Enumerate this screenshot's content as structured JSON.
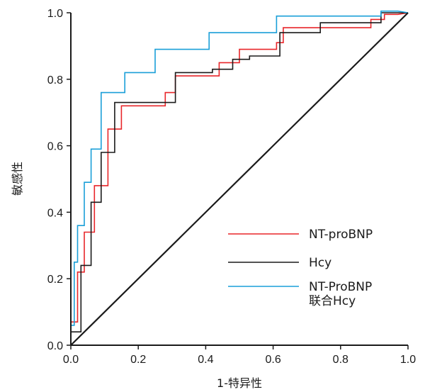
{
  "chart_data": {
    "type": "line",
    "title": "",
    "xlabel": "1-特异性",
    "ylabel": "敏感性",
    "xlim": [
      0,
      1
    ],
    "ylim": [
      0,
      1
    ],
    "x_ticks": [
      "0.0",
      "0.2",
      "0.4",
      "0.6",
      "0.8",
      "1.0"
    ],
    "y_ticks": [
      "0.0",
      "0.2",
      "0.4",
      "0.6",
      "0.8",
      "1.0"
    ],
    "grid": false,
    "legend_position": "bottom-right",
    "series": [
      {
        "name": "NT-proBNP",
        "color": "#e8262a",
        "points": [
          [
            0,
            0
          ],
          [
            0,
            0.07
          ],
          [
            0.02,
            0.07
          ],
          [
            0.02,
            0.22
          ],
          [
            0.04,
            0.22
          ],
          [
            0.04,
            0.34
          ],
          [
            0.07,
            0.34
          ],
          [
            0.07,
            0.48
          ],
          [
            0.11,
            0.48
          ],
          [
            0.11,
            0.65
          ],
          [
            0.15,
            0.65
          ],
          [
            0.15,
            0.72
          ],
          [
            0.28,
            0.72
          ],
          [
            0.28,
            0.76
          ],
          [
            0.31,
            0.76
          ],
          [
            0.31,
            0.81
          ],
          [
            0.44,
            0.81
          ],
          [
            0.44,
            0.85
          ],
          [
            0.5,
            0.85
          ],
          [
            0.5,
            0.89
          ],
          [
            0.61,
            0.89
          ],
          [
            0.61,
            0.91
          ],
          [
            0.63,
            0.91
          ],
          [
            0.63,
            0.955
          ],
          [
            0.89,
            0.955
          ],
          [
            0.89,
            0.98
          ],
          [
            0.93,
            0.98
          ],
          [
            0.93,
            0.995
          ],
          [
            0.97,
            0.995
          ],
          [
            1,
            1
          ]
        ]
      },
      {
        "name": "Hcy",
        "color": "#1a1a1a",
        "points": [
          [
            0,
            0
          ],
          [
            0,
            0.04
          ],
          [
            0.03,
            0.04
          ],
          [
            0.03,
            0.24
          ],
          [
            0.06,
            0.24
          ],
          [
            0.06,
            0.43
          ],
          [
            0.09,
            0.43
          ],
          [
            0.09,
            0.58
          ],
          [
            0.13,
            0.58
          ],
          [
            0.13,
            0.73
          ],
          [
            0.23,
            0.73
          ],
          [
            0.23,
            0.73
          ],
          [
            0.31,
            0.73
          ],
          [
            0.31,
            0.82
          ],
          [
            0.42,
            0.82
          ],
          [
            0.42,
            0.83
          ],
          [
            0.48,
            0.83
          ],
          [
            0.48,
            0.86
          ],
          [
            0.53,
            0.86
          ],
          [
            0.53,
            0.87
          ],
          [
            0.62,
            0.87
          ],
          [
            0.62,
            0.94
          ],
          [
            0.74,
            0.94
          ],
          [
            0.74,
            0.97
          ],
          [
            0.92,
            0.97
          ],
          [
            0.92,
            1.0
          ],
          [
            1,
            1
          ]
        ]
      },
      {
        "name": "NT-ProBNP\n联合Hcy",
        "color": "#1a9fd8",
        "points": [
          [
            0,
            0
          ],
          [
            0,
            0.06
          ],
          [
            0.01,
            0.06
          ],
          [
            0.01,
            0.25
          ],
          [
            0.02,
            0.25
          ],
          [
            0.02,
            0.36
          ],
          [
            0.04,
            0.36
          ],
          [
            0.04,
            0.49
          ],
          [
            0.06,
            0.49
          ],
          [
            0.06,
            0.59
          ],
          [
            0.09,
            0.59
          ],
          [
            0.09,
            0.76
          ],
          [
            0.16,
            0.76
          ],
          [
            0.16,
            0.82
          ],
          [
            0.25,
            0.82
          ],
          [
            0.25,
            0.89
          ],
          [
            0.41,
            0.89
          ],
          [
            0.41,
            0.94
          ],
          [
            0.61,
            0.94
          ],
          [
            0.61,
            0.99
          ],
          [
            0.92,
            0.99
          ],
          [
            0.92,
            1.005
          ],
          [
            0.97,
            1.005
          ],
          [
            1,
            1
          ]
        ]
      },
      {
        "name": "",
        "color": "#1a1a1a",
        "points": [
          [
            0,
            0
          ],
          [
            1,
            1
          ]
        ]
      }
    ]
  },
  "legend": [
    {
      "label_line1": "NT-proBNP",
      "label_line2": "",
      "color": "#e8262a"
    },
    {
      "label_line1": "Hcy",
      "label_line2": "",
      "color": "#1a1a1a"
    },
    {
      "label_line1": "NT-ProBNP",
      "label_line2": "联合Hcy",
      "color": "#1a9fd8"
    }
  ]
}
